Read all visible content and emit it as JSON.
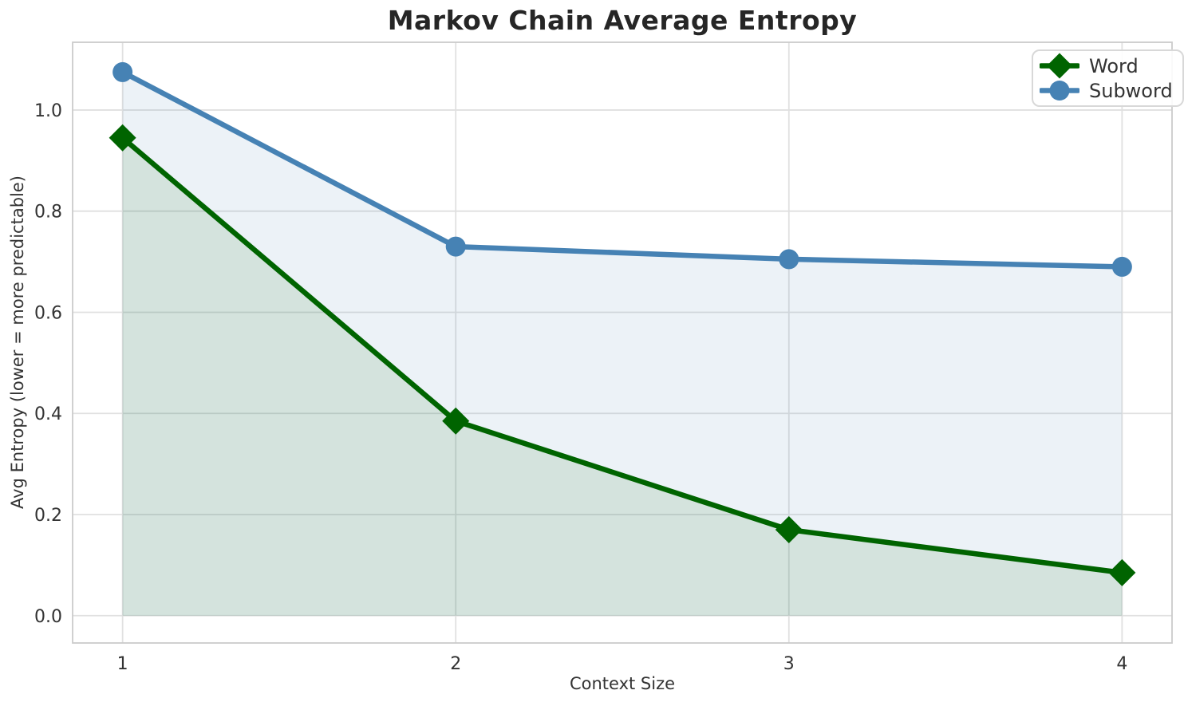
{
  "chart": {
    "title": "Markov Chain Average Entropy",
    "xlabel": "Context Size",
    "ylabel": "Avg Entropy (lower = more predictable)"
  },
  "legend": {
    "items": [
      {
        "label": "Word",
        "marker": "diamond",
        "color": "#006400"
      },
      {
        "label": "Subword",
        "marker": "circle",
        "color": "#4682B4"
      }
    ]
  },
  "chart_data": {
    "type": "line",
    "title": "Markov Chain Average Entropy",
    "xlabel": "Context Size",
    "ylabel": "Avg Entropy (lower = more predictable)",
    "x": [
      1,
      2,
      3,
      4
    ],
    "series": [
      {
        "name": "Word",
        "values": [
          0.945,
          0.385,
          0.17,
          0.085
        ],
        "color": "#006400",
        "marker": "diamond",
        "area_fill_to_zero": true,
        "fill_alpha": 0.1
      },
      {
        "name": "Subword",
        "values": [
          1.075,
          0.73,
          0.705,
          0.69
        ],
        "color": "#4682B4",
        "marker": "circle",
        "area_fill_to_zero": true,
        "fill_alpha": 0.1
      }
    ],
    "xlim": [
      0.85,
      4.15
    ],
    "ylim": [
      -0.054,
      1.134
    ],
    "xticks": {
      "values": [
        1,
        2,
        3,
        4
      ],
      "labels": [
        "1",
        "2",
        "3",
        "4"
      ]
    },
    "yticks": {
      "values": [
        0.0,
        0.2,
        0.4,
        0.6,
        0.8,
        1.0
      ],
      "labels": [
        "0.0",
        "0.2",
        "0.4",
        "0.6",
        "0.8",
        "1.0"
      ]
    },
    "grid": true,
    "legend_position": "upper right",
    "style": {
      "grid_color": "#e0e0e0",
      "spine_color": "#cbcbcb",
      "tick_text_color": "#333333",
      "title_color": "#262626",
      "line_width": 6.5,
      "circle_radius": 12.5,
      "diamond_half_diagonal": 17
    }
  }
}
